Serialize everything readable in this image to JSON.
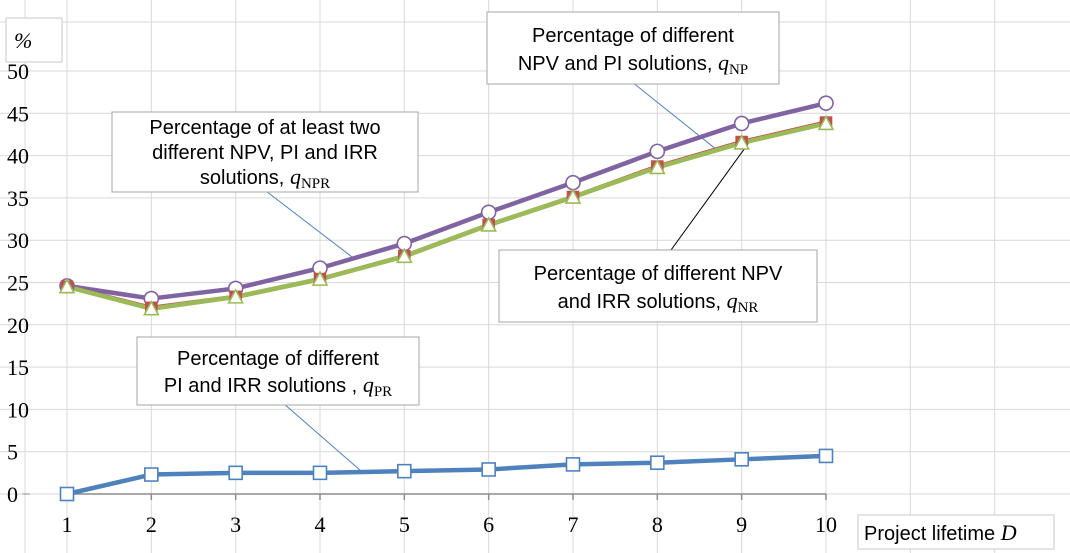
{
  "chart_data": {
    "type": "line",
    "ylabel": "%",
    "xlabel": "Project lifetime",
    "xlabel_symbol": "D",
    "x": [
      1,
      2,
      3,
      4,
      5,
      6,
      7,
      8,
      9,
      10
    ],
    "x_tick_labels": [
      "1",
      "2",
      "3",
      "4",
      "5",
      "6",
      "7",
      "8",
      "9",
      "10"
    ],
    "y_tick_labels": [
      "0",
      "5",
      "10",
      "15",
      "20",
      "25",
      "30",
      "35",
      "40",
      "45",
      "50"
    ],
    "ylim": [
      0,
      50
    ],
    "xlim": [
      1,
      10
    ],
    "grid": true,
    "series": [
      {
        "id": "npr",
        "color": "#8064a2",
        "marker": "circle",
        "values": [
          24.6,
          23.1,
          24.3,
          26.7,
          29.6,
          33.3,
          36.8,
          40.5,
          43.8,
          46.2
        ]
      },
      {
        "id": "np",
        "color": "#c0504d",
        "marker": "square",
        "values": [
          24.5,
          22.0,
          23.3,
          25.4,
          28.1,
          31.8,
          35.1,
          38.7,
          41.6,
          43.9
        ]
      },
      {
        "id": "nr",
        "color": "#9bbb59",
        "marker": "triangle",
        "values": [
          24.5,
          21.9,
          23.3,
          25.4,
          28.1,
          31.8,
          35.1,
          38.6,
          41.5,
          43.8
        ]
      },
      {
        "id": "pr",
        "color": "#4f81bd",
        "marker": "square",
        "values": [
          0.0,
          2.3,
          2.5,
          2.5,
          2.7,
          2.9,
          3.5,
          3.7,
          4.1,
          4.5
        ]
      }
    ],
    "annotations": [
      {
        "id": "np",
        "lines": [
          "Percentage of different",
          "NPV and PI solutions,"
        ],
        "symbol": "q",
        "subscript": "NP"
      },
      {
        "id": "npr",
        "lines": [
          "Percentage of at least two",
          "different NPV, PI and IRR",
          "solutions,"
        ],
        "symbol": "q",
        "subscript": "NPR"
      },
      {
        "id": "nr",
        "lines": [
          "Percentage of different NPV",
          "and IRR solutions,"
        ],
        "symbol": "q",
        "subscript": "NR"
      },
      {
        "id": "pr",
        "lines": [
          "Percentage of different",
          "PI and IRR solutions ,"
        ],
        "symbol": "q",
        "subscript": "PR"
      }
    ]
  }
}
